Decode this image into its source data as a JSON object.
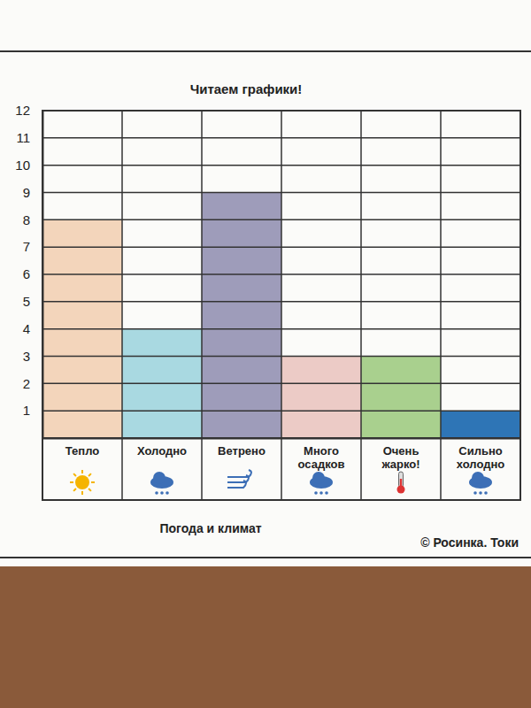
{
  "chart_data": {
    "type": "bar",
    "title": "Читаем графики!",
    "xlabel": "Погода и климат",
    "annotations": [
      "© Росинка. Токи"
    ],
    "categories": [
      "Тепло",
      "Холодно",
      "Ветрено",
      "Много осадков",
      "Очень жарко!",
      "Сильно холодно"
    ],
    "values": [
      8,
      4,
      9,
      3,
      3,
      1
    ],
    "colors": [
      "#f3d5bb",
      "#a9d9e1",
      "#9e9cba",
      "#eccbc6",
      "#a9d08e",
      "#2e75b6"
    ],
    "ylim": [
      0,
      12
    ],
    "yticks": [
      1,
      2,
      3,
      4,
      5,
      6,
      7,
      8,
      9,
      10,
      11,
      12
    ],
    "grid": true
  }
}
